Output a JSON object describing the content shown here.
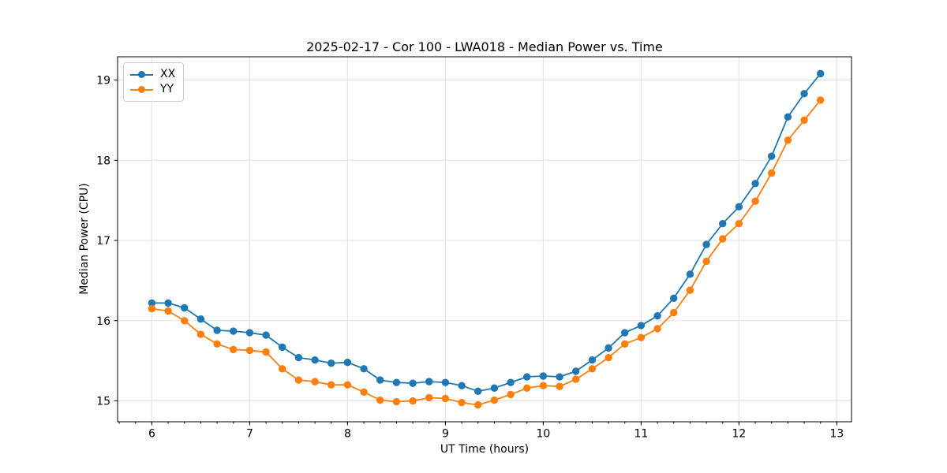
{
  "title": "2025-02-17 - Cor 100 - LWA018 - Median Power vs. Time",
  "xlabel": "UT Time (hours)",
  "ylabel": "Median Power (CPU)",
  "chart_data": {
    "type": "line",
    "title": "2025-02-17 - Cor 100 - LWA018 - Median Power vs. Time",
    "xlabel": "UT Time (hours)",
    "ylabel": "Median Power (CPU)",
    "x": [
      6.0,
      6.167,
      6.333,
      6.5,
      6.667,
      6.833,
      7.0,
      7.167,
      7.333,
      7.5,
      7.667,
      7.833,
      8.0,
      8.167,
      8.333,
      8.5,
      8.667,
      8.833,
      9.0,
      9.167,
      9.333,
      9.5,
      9.667,
      9.833,
      10.0,
      10.167,
      10.333,
      10.5,
      10.667,
      10.833,
      11.0,
      11.167,
      11.333,
      11.5,
      11.667,
      11.833,
      12.0,
      12.167,
      12.333,
      12.5,
      12.667,
      12.833
    ],
    "series": [
      {
        "name": "XX",
        "color": "#1f77b4",
        "values": [
          16.22,
          16.22,
          16.16,
          16.02,
          15.88,
          15.87,
          15.85,
          15.82,
          15.67,
          15.54,
          15.51,
          15.47,
          15.48,
          15.4,
          15.26,
          15.23,
          15.22,
          15.24,
          15.23,
          15.19,
          15.12,
          15.16,
          15.23,
          15.3,
          15.31,
          15.3,
          15.37,
          15.51,
          15.66,
          15.85,
          15.94,
          16.06,
          16.28,
          16.58,
          16.95,
          17.21,
          17.42,
          17.71,
          18.05,
          18.54,
          18.83,
          19.08
        ]
      },
      {
        "name": "YY",
        "color": "#ff7f0e",
        "values": [
          16.15,
          16.12,
          16.0,
          15.83,
          15.71,
          15.64,
          15.63,
          15.61,
          15.4,
          15.26,
          15.24,
          15.2,
          15.2,
          15.11,
          15.01,
          14.99,
          15.0,
          15.04,
          15.03,
          14.98,
          14.95,
          15.01,
          15.08,
          15.16,
          15.19,
          15.18,
          15.27,
          15.4,
          15.54,
          15.71,
          15.79,
          15.9,
          16.1,
          16.38,
          16.74,
          17.02,
          17.21,
          17.49,
          17.84,
          18.25,
          18.5,
          18.75
        ]
      }
    ],
    "xlim": [
      5.65,
      13.15
    ],
    "ylim": [
      14.74,
      19.29
    ],
    "xticks": [
      6,
      7,
      8,
      9,
      10,
      11,
      12,
      13
    ],
    "yticks": [
      15,
      16,
      17,
      18,
      19
    ],
    "x_minor_step": 0.1666667,
    "grid": true,
    "grid_color": "#e2e2e2",
    "legend_position": "upper left"
  }
}
